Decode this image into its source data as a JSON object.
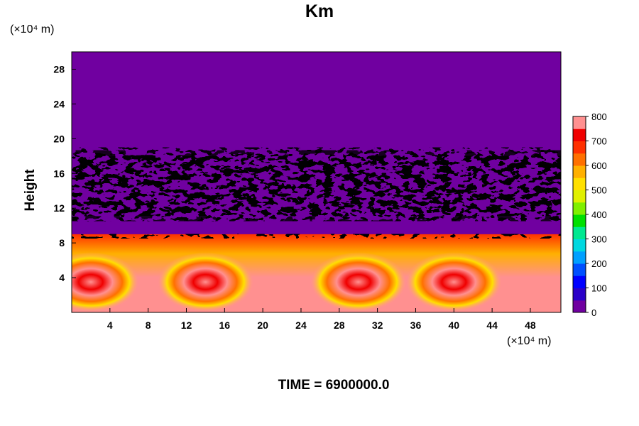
{
  "chart_data": {
    "type": "heatmap",
    "title": "Km",
    "ylabel": "Height",
    "y_unit": "(×10⁴ m)",
    "x_unit": "(×10⁴ m)",
    "footer": "TIME = 6900000.0",
    "xlim": [
      0,
      51.2
    ],
    "ylim": [
      0,
      30
    ],
    "x_ticks": [
      4,
      8,
      12,
      16,
      20,
      24,
      28,
      32,
      36,
      40,
      44,
      48
    ],
    "y_ticks": [
      4,
      8,
      12,
      16,
      20,
      24,
      28
    ],
    "colorbar": {
      "min": 0,
      "max": 800,
      "step": 50,
      "tick_labels": [
        "0",
        "100",
        "200",
        "300",
        "400",
        "500",
        "600",
        "700",
        "800"
      ],
      "colors": [
        "#7000a0",
        "#2a00c8",
        "#0000ff",
        "#0050ff",
        "#00a0ff",
        "#00d8e0",
        "#00e890",
        "#00e000",
        "#80f000",
        "#e0f000",
        "#ffe000",
        "#ffb000",
        "#ff7000",
        "#ff3000",
        "#f00000",
        "#ff9090"
      ]
    },
    "field_description": {
      "upper_layer": {
        "height_range": [
          18.5,
          30
        ],
        "value": 0
      },
      "turbulent_band": {
        "height_range": [
          10,
          19
        ],
        "values_range": [
          0,
          800
        ]
      },
      "quiet_layer": {
        "height_range": [
          9,
          10.5
        ],
        "value": 0
      },
      "lower_layer": {
        "height_range": [
          0,
          9
        ],
        "values_range": [
          400,
          800
        ],
        "eddy_centers_x": [
          2,
          14,
          30,
          40
        ]
      }
    }
  }
}
